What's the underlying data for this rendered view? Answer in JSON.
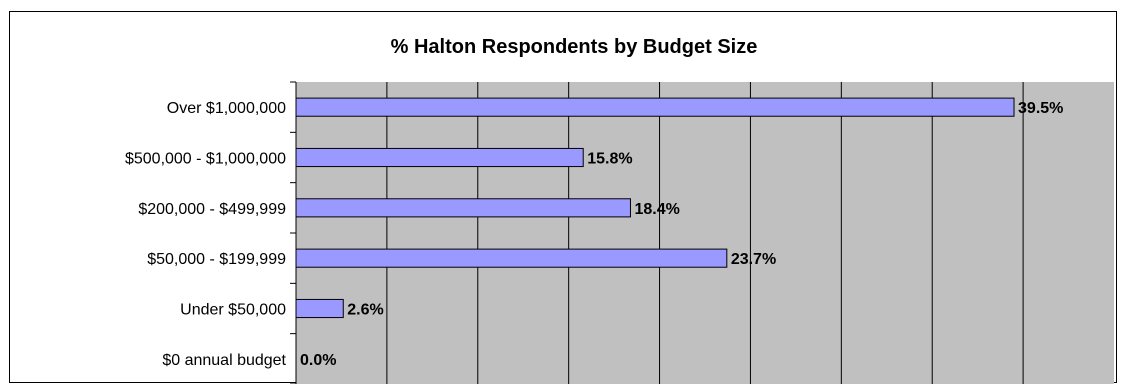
{
  "chart_data": {
    "type": "bar",
    "orientation": "horizontal",
    "title": "% Halton Respondents by Budget Size",
    "categories": [
      "Over $1,000,000",
      "$500,000 - $1,000,000",
      "$200,000 - $499,999",
      "$50,000 - $199,999",
      "Under $50,000",
      "$0 annual budget"
    ],
    "values": [
      39.5,
      15.8,
      18.4,
      23.7,
      2.6,
      0.0
    ],
    "data_labels": [
      "39.5%",
      "15.8%",
      "18.4%",
      "23.7%",
      "2.6%",
      "0.0%"
    ],
    "xlim": [
      0,
      45
    ],
    "x_gridline_step": 5,
    "grid": true,
    "legend": "none",
    "colors": {
      "bar_fill": "#9999ff",
      "bar_stroke": "#000000",
      "plot_background": "#c0c0c0",
      "gridline": "#000000"
    }
  }
}
